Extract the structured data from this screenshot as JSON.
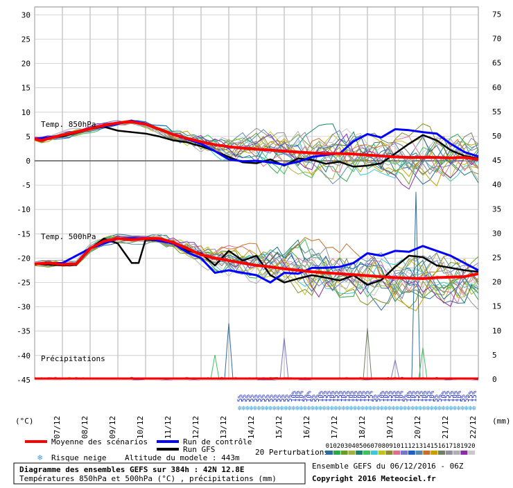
{
  "chart_data": {
    "type": "line",
    "title": "Diagramme des ensembles GEFS sur 384h : 42N 12.8E",
    "subtitle": "Températures 850hPa et 500hPa (°C) , précipitations (mm)",
    "left_axis": {
      "unit": "(°C)",
      "ticks": [
        30,
        25,
        20,
        15,
        10,
        5,
        0,
        -5,
        -10,
        -15,
        -20,
        -25,
        -30,
        -35,
        -40,
        -45
      ],
      "range": [
        -45,
        30
      ]
    },
    "right_axis": {
      "unit": "(mm)",
      "ticks": [
        75,
        70,
        65,
        60,
        55,
        50,
        45,
        40,
        35,
        30,
        25,
        20,
        15,
        10,
        5,
        0
      ],
      "range": [
        0,
        75
      ]
    },
    "x_ticks": [
      "07/12",
      "08/12",
      "09/12",
      "10/12",
      "11/12",
      "12/12",
      "13/12",
      "14/12",
      "15/12",
      "16/12",
      "17/12",
      "18/12",
      "19/12",
      "20/12",
      "21/12",
      "22/12"
    ],
    "panel_labels": {
      "t850": "Temp. 850hPa",
      "t500": "Temp. 500hPa",
      "precip": "Précipitations"
    },
    "t850_mean": [
      [
        0,
        4.5
      ],
      [
        0.25,
        4.2
      ],
      [
        0.5,
        4.6
      ],
      [
        1,
        5.3
      ],
      [
        1.5,
        5.9
      ],
      [
        2,
        6.6
      ],
      [
        2.5,
        7.3
      ],
      [
        3,
        7.8
      ],
      [
        3.5,
        8.0
      ],
      [
        4,
        7.5
      ],
      [
        4.5,
        6.5
      ],
      [
        5,
        5.4
      ],
      [
        5.5,
        4.6
      ],
      [
        6,
        3.9
      ],
      [
        6.5,
        3.3
      ],
      [
        7,
        2.9
      ],
      [
        7.5,
        2.6
      ],
      [
        8,
        2.4
      ],
      [
        8.5,
        2.2
      ],
      [
        9,
        2.0
      ],
      [
        9.5,
        1.8
      ],
      [
        10,
        1.6
      ],
      [
        10.5,
        1.5
      ],
      [
        11,
        1.5
      ],
      [
        11.5,
        1.4
      ],
      [
        12,
        1.2
      ],
      [
        12.5,
        1.0
      ],
      [
        13,
        0.8
      ],
      [
        13.5,
        0.7
      ],
      [
        14,
        0.7
      ],
      [
        14.5,
        0.7
      ],
      [
        15,
        0.6
      ],
      [
        15.5,
        0.7
      ],
      [
        16,
        0.3
      ]
    ],
    "t850_control": [
      [
        0,
        4.5
      ],
      [
        1,
        5.2
      ],
      [
        2,
        6.6
      ],
      [
        3,
        7.6
      ],
      [
        3.5,
        8.2
      ],
      [
        4,
        7.6
      ],
      [
        5,
        5.4
      ],
      [
        6,
        3.5
      ],
      [
        6.5,
        2.0
      ],
      [
        7,
        0.3
      ],
      [
        7.5,
        -0.1
      ],
      [
        8,
        0.0
      ],
      [
        8.5,
        -0.3
      ],
      [
        9,
        -0.8
      ],
      [
        9.5,
        -0.2
      ],
      [
        10,
        0.8
      ],
      [
        10.5,
        1.2
      ],
      [
        11,
        1.5
      ],
      [
        11.5,
        4.0
      ],
      [
        12,
        5.5
      ],
      [
        12.5,
        4.8
      ],
      [
        13,
        6.5
      ],
      [
        13.5,
        6.3
      ],
      [
        14,
        5.9
      ],
      [
        14.5,
        5.6
      ],
      [
        15,
        3.5
      ],
      [
        15.5,
        1.8
      ],
      [
        16,
        0.9
      ]
    ],
    "t850_gfs": [
      [
        0,
        4.5
      ],
      [
        1,
        5.0
      ],
      [
        2,
        6.5
      ],
      [
        2.5,
        7.0
      ],
      [
        3,
        6.2
      ],
      [
        3.5,
        5.9
      ],
      [
        4,
        5.6
      ],
      [
        4.5,
        5.0
      ],
      [
        5,
        4.2
      ],
      [
        5.5,
        3.8
      ],
      [
        6,
        3.0
      ],
      [
        6.5,
        2.0
      ],
      [
        7,
        0.8
      ],
      [
        7.5,
        -0.3
      ],
      [
        8,
        -0.5
      ],
      [
        8.5,
        0.3
      ],
      [
        9,
        -1.0
      ],
      [
        9.5,
        0.5
      ],
      [
        10,
        0.2
      ],
      [
        10.5,
        -0.6
      ],
      [
        11,
        -0.2
      ],
      [
        11.5,
        -1.2
      ],
      [
        12,
        -1.0
      ],
      [
        12.5,
        -0.5
      ],
      [
        13,
        1.5
      ],
      [
        13.5,
        3.5
      ],
      [
        14,
        5.3
      ],
      [
        14.5,
        4.2
      ],
      [
        15,
        2.2
      ],
      [
        15.5,
        1.0
      ],
      [
        16,
        0.5
      ]
    ],
    "t500_mean": [
      [
        0,
        -21.2
      ],
      [
        0.5,
        -21.0
      ],
      [
        1,
        -21.3
      ],
      [
        1.5,
        -21.2
      ],
      [
        2,
        -18.0
      ],
      [
        2.5,
        -16.5
      ],
      [
        3,
        -16.0
      ],
      [
        3.5,
        -16.2
      ],
      [
        4,
        -16.0
      ],
      [
        4.5,
        -16.0
      ],
      [
        5,
        -16.8
      ],
      [
        5.5,
        -18.0
      ],
      [
        6,
        -19.3
      ],
      [
        6.5,
        -20.0
      ],
      [
        7,
        -20.5
      ],
      [
        7.5,
        -21.0
      ],
      [
        8,
        -21.5
      ],
      [
        8.5,
        -21.8
      ],
      [
        9,
        -22.2
      ],
      [
        9.5,
        -22.5
      ],
      [
        10,
        -22.8
      ],
      [
        10.5,
        -23.0
      ],
      [
        11,
        -23.2
      ],
      [
        11.5,
        -23.4
      ],
      [
        12,
        -23.6
      ],
      [
        12.5,
        -23.8
      ],
      [
        13,
        -24.0
      ],
      [
        13.5,
        -24.1
      ],
      [
        14,
        -24.2
      ],
      [
        14.5,
        -24.0
      ],
      [
        15,
        -23.9
      ],
      [
        15.5,
        -23.8
      ],
      [
        16,
        -23.2
      ]
    ],
    "t500_control": [
      [
        0,
        -21.2
      ],
      [
        1,
        -21.0
      ],
      [
        2,
        -18.0
      ],
      [
        3,
        -16.0
      ],
      [
        4,
        -15.9
      ],
      [
        5,
        -17.0
      ],
      [
        5.5,
        -18.8
      ],
      [
        6,
        -20.0
      ],
      [
        6.5,
        -23.0
      ],
      [
        7,
        -22.5
      ],
      [
        7.5,
        -23.0
      ],
      [
        8,
        -23.5
      ],
      [
        8.5,
        -25.0
      ],
      [
        9,
        -23.0
      ],
      [
        9.5,
        -23.2
      ],
      [
        10,
        -22.0
      ],
      [
        10.5,
        -22.0
      ],
      [
        11,
        -21.8
      ],
      [
        11.5,
        -21.0
      ],
      [
        12,
        -19.0
      ],
      [
        12.5,
        -19.5
      ],
      [
        13,
        -18.5
      ],
      [
        13.5,
        -18.7
      ],
      [
        14,
        -17.5
      ],
      [
        14.5,
        -18.5
      ],
      [
        15,
        -19.5
      ],
      [
        15.5,
        -21.0
      ],
      [
        16,
        -22.5
      ]
    ],
    "t500_gfs": [
      [
        0,
        -21.2
      ],
      [
        1,
        -21.5
      ],
      [
        1.5,
        -21.4
      ],
      [
        2,
        -18.0
      ],
      [
        2.5,
        -16.0
      ],
      [
        3,
        -17.0
      ],
      [
        3.5,
        -21.0
      ],
      [
        3.75,
        -21.0
      ],
      [
        4,
        -16.2
      ],
      [
        5,
        -16.6
      ],
      [
        5.5,
        -18.5
      ],
      [
        6,
        -19.0
      ],
      [
        6.5,
        -21.5
      ],
      [
        7,
        -18.5
      ],
      [
        7.5,
        -20.5
      ],
      [
        8,
        -19.5
      ],
      [
        8.5,
        -23.5
      ],
      [
        9,
        -25.0
      ],
      [
        9.5,
        -24.2
      ],
      [
        10,
        -23.5
      ],
      [
        10.5,
        -24.0
      ],
      [
        11,
        -24.6
      ],
      [
        11.5,
        -23.5
      ],
      [
        12,
        -25.5
      ],
      [
        12.5,
        -24.5
      ],
      [
        13,
        -21.8
      ],
      [
        13.5,
        -19.5
      ],
      [
        14,
        -19.8
      ],
      [
        14.5,
        -21.5
      ],
      [
        15,
        -22.0
      ],
      [
        15.5,
        -22.5
      ],
      [
        16,
        -22.8
      ]
    ],
    "precip_spikes": [
      [
        7,
        11.5
      ],
      [
        6.5,
        5.0
      ],
      [
        9,
        8.5
      ],
      [
        12,
        10.5
      ],
      [
        13.75,
        38.5
      ],
      [
        14,
        6.5
      ],
      [
        13,
        4.0
      ]
    ],
    "snow_risk_pct": [
      "5%",
      "5%",
      "5%",
      "5%",
      "5%",
      "5%",
      "5%",
      "5%",
      "5%",
      "5%",
      "5%",
      "5%",
      "5%",
      "5%",
      "10%",
      "10%",
      "10%",
      "5%",
      "10%",
      "5%",
      "5%",
      "10%",
      "15%",
      "15%",
      "10%",
      "15%",
      "15%",
      "10%",
      "15%",
      "10%",
      "10%",
      "10%",
      "10%",
      "15%",
      "15%",
      "5%",
      "5%",
      "10%",
      "10%",
      "15%",
      "15%",
      "10%",
      "10%",
      "5%",
      "10%",
      "10%",
      "15%",
      "15%",
      "10%",
      "15%",
      "10%",
      "5%",
      "5%",
      "10%",
      "15%",
      "15%",
      "10%",
      "10%",
      "5%",
      "5%",
      "15%",
      "15%"
    ]
  },
  "legend": {
    "mean_label": "Moyenne des scénarios",
    "control_label": "Run de contrôle",
    "gfs_label": "Run GFS",
    "perturbations_label": "20 Perturbations",
    "snow_label": "Risque neige",
    "altitude_label": "Altitude du modele : 443m",
    "pert_numbers": [
      "01",
      "02",
      "03",
      "04",
      "05",
      "06",
      "07",
      "08",
      "09",
      "10",
      "11",
      "12",
      "13",
      "14",
      "15",
      "16",
      "17",
      "18",
      "19",
      "20"
    ],
    "pert_colors": [
      "#2b6e9e",
      "#2aa84a",
      "#6a9c2c",
      "#a0b43c",
      "#1e7f6e",
      "#40c060",
      "#3cc8d8",
      "#c2c21e",
      "#8c8c28",
      "#e06e8e",
      "#7878c8",
      "#2060c0",
      "#5a8aa8",
      "#c87028",
      "#c8a000",
      "#708060",
      "#9090a0",
      "#b0b0b0",
      "#8c2ca8",
      "#c8c8c8"
    ],
    "colors": {
      "mean": "#ff0000",
      "control": "#0000ff",
      "gfs": "#000000",
      "snow": "#3aa0e0"
    }
  },
  "footer": {
    "ensemble_text": "Ensemble GEFS du 06/12/2016 - 06Z",
    "copyright_text": "Copyright 2016 Meteociel.fr"
  }
}
